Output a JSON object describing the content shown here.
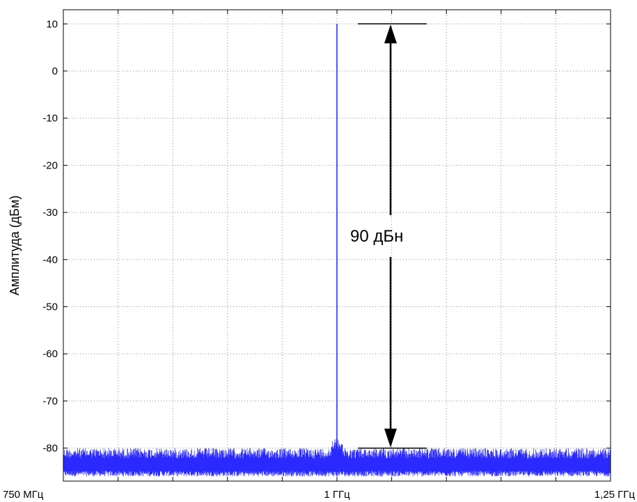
{
  "chart_data": {
    "type": "line",
    "title": "",
    "xlabel": "",
    "ylabel": "Амплитуда (дБм)",
    "x_ticks": [
      {
        "x": 750,
        "label": "750 МГц"
      },
      {
        "x": 1000,
        "label": "1 ГГц"
      },
      {
        "x": 1250,
        "label": "1,25 ГГц"
      }
    ],
    "xlim": [
      750,
      1250
    ],
    "x_unit": "MHz",
    "yticks": [
      10,
      0,
      -10,
      -20,
      -30,
      -40,
      -50,
      -60,
      -70,
      -80
    ],
    "ylim": [
      -87,
      13
    ],
    "grid": true,
    "series": [
      {
        "color": "#2a2aff",
        "peak": {
          "x": 1000,
          "y": 10
        },
        "noise_floor": {
          "min": -86,
          "max": -80
        }
      }
    ],
    "annotations": [
      {
        "text": "90 дБн",
        "from_y": 10,
        "to_y": -80
      }
    ]
  }
}
